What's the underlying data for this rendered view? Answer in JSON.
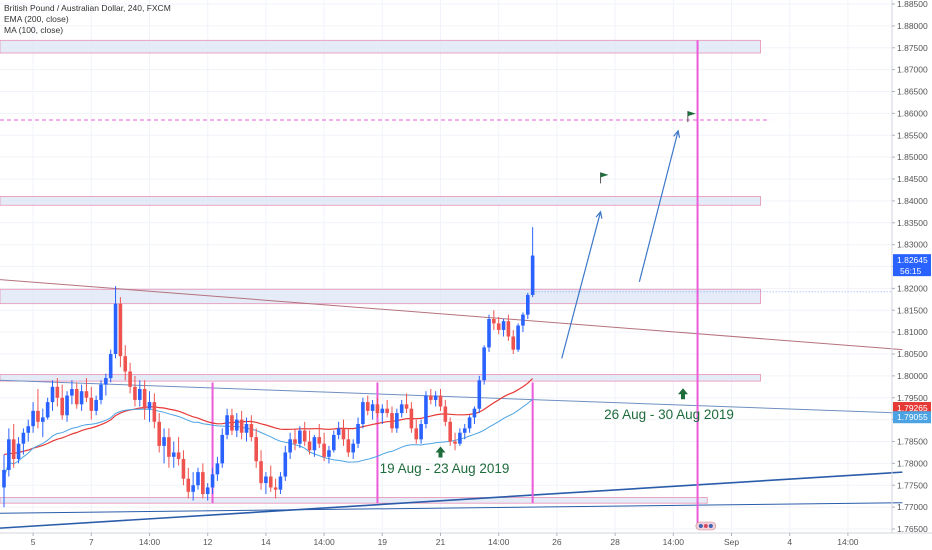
{
  "legend": {
    "title": "British Pound / Australian Dollar, 240, FXCM",
    "ema": "EMA (200, close)",
    "ma": "MA (100, close)"
  },
  "chart_data": {
    "type": "candlestick",
    "symbol": "GBPAUD",
    "y_axis": {
      "min": 1.765,
      "max": 1.885,
      "side": "right",
      "ticks": [
        1.765,
        1.77,
        1.775,
        1.78,
        1.785,
        1.79,
        1.795,
        1.8,
        1.805,
        1.81,
        1.815,
        1.82,
        1.825,
        1.83,
        1.835,
        1.84,
        1.845,
        1.85,
        1.855,
        1.86,
        1.865,
        1.87,
        1.875,
        1.88,
        1.885
      ],
      "tick_labels": [
        "1.76500",
        "1.77000",
        "1.77500",
        "1.78000",
        "1.78500",
        "1.79000",
        "1.79500",
        "1.80000",
        "1.80500",
        "1.81000",
        "1.81500",
        "1.82000",
        "1.82500",
        "1.83000",
        "1.83500",
        "1.84000",
        "1.84500",
        "1.85000",
        "1.85500",
        "1.86000",
        "1.86500",
        "1.87000",
        "1.87500",
        "1.88000",
        "1.88500"
      ]
    },
    "x_axis": {
      "labels": [
        "5",
        "7",
        "14:00",
        "12",
        "14",
        "14:00",
        "19",
        "21",
        "14:00",
        "26",
        "28",
        "14:00",
        "Sep",
        "4",
        "14:00"
      ],
      "label_bar_index": [
        6,
        18,
        30,
        42,
        54,
        66,
        78,
        90,
        102,
        114,
        126,
        138,
        150,
        162,
        174
      ]
    },
    "price_labels": {
      "current": "1.82645",
      "countdown": "56:15",
      "ema_value": "1.79265",
      "ma_value": "1.79055"
    },
    "colors": {
      "up": "#2962ff",
      "down": "#ef5350",
      "ema": "#e53935",
      "ma": "#4ba3e3",
      "zone_fill": "#dce6f5",
      "zone_border": "#e991b4",
      "vline": "#ec5bd9",
      "arrow": "#3c78c8",
      "annotation": "#1e6b3c",
      "resistance": "#b5727e",
      "support": "#2a5caa"
    },
    "annotations": [
      {
        "text": "19 Aug - 23 Aug 2019",
        "bar": 90,
        "price": 1.779,
        "arrow_price": 1.7825
      },
      {
        "text": "26 Aug - 30 Aug 2019",
        "bar": 140,
        "price": 1.7913,
        "arrow_price": 1.7958
      }
    ],
    "zones": [
      {
        "from_bar": 0,
        "to_bar": 156,
        "high": 1.8767,
        "low": 1.8738
      },
      {
        "from_bar": 0,
        "to_bar": 156,
        "high": 1.841,
        "low": 1.839
      },
      {
        "from_bar": 0,
        "to_bar": 156,
        "high": 1.8198,
        "low": 1.8165
      },
      {
        "from_bar": 0,
        "to_bar": 156,
        "high": 1.8003,
        "low": 1.7988
      },
      {
        "from_bar": 0,
        "to_bar": 145,
        "high": 1.7722,
        "low": 1.7709
      }
    ],
    "target_line": 1.8585,
    "vertical_lines": [
      43,
      77,
      109,
      143
    ],
    "trend_lines": [
      {
        "p1": [
          0,
          1.822
        ],
        "p2": [
          184,
          1.806
        ],
        "role": "resistance"
      },
      {
        "p1": [
          0,
          1.799
        ],
        "p2": [
          184,
          1.7915
        ],
        "role": "support-upper"
      },
      {
        "p1": [
          0,
          1.7686
        ],
        "p2": [
          184,
          1.771
        ],
        "role": "support"
      },
      {
        "p1": [
          0,
          1.7652
        ],
        "p2": [
          184,
          1.778
        ],
        "role": "support-lower"
      }
    ],
    "forecast_arrows": [
      {
        "from": [
          115,
          1.804
        ],
        "to": [
          123,
          1.8375
        ]
      },
      {
        "from": [
          131,
          1.8215
        ],
        "to": [
          139,
          1.856
        ]
      }
    ],
    "flags": [
      {
        "bar": 123,
        "price": 1.844
      },
      {
        "bar": 141,
        "price": 1.858
      }
    ],
    "ohlc_sequence": [
      [
        1.7745,
        1.782,
        1.77,
        1.7785
      ],
      [
        1.7785,
        1.788,
        1.777,
        1.7855
      ],
      [
        1.7855,
        1.789,
        1.779,
        1.781
      ],
      [
        1.781,
        1.786,
        1.78,
        1.7845
      ],
      [
        1.7845,
        1.788,
        1.782,
        1.787
      ],
      [
        1.787,
        1.79,
        1.785,
        1.7885
      ],
      [
        1.7885,
        1.794,
        1.787,
        1.792
      ],
      [
        1.792,
        1.797,
        1.788,
        1.7895
      ],
      [
        1.7895,
        1.7925,
        1.786,
        1.7905
      ],
      [
        1.7905,
        1.795,
        1.79,
        1.794
      ],
      [
        1.794,
        1.799,
        1.792,
        1.7975
      ],
      [
        1.7975,
        1.7995,
        1.793,
        1.795
      ],
      [
        1.795,
        1.798,
        1.79,
        1.791
      ],
      [
        1.791,
        1.7965,
        1.7895,
        1.7955
      ],
      [
        1.7955,
        1.799,
        1.7935,
        1.797
      ],
      [
        1.797,
        1.7985,
        1.7925,
        1.7935
      ],
      [
        1.7935,
        1.798,
        1.792,
        1.7965
      ],
      [
        1.7965,
        1.7995,
        1.794,
        1.795
      ],
      [
        1.795,
        1.7975,
        1.79,
        1.792
      ],
      [
        1.792,
        1.7955,
        1.791,
        1.7945
      ],
      [
        1.7945,
        1.799,
        1.7935,
        1.798
      ],
      [
        1.798,
        1.8005,
        1.7955,
        1.7995
      ],
      [
        1.7995,
        1.806,
        1.7985,
        1.805
      ],
      [
        1.805,
        1.8205,
        1.804,
        1.8165
      ],
      [
        1.8165,
        1.818,
        1.802,
        1.8045
      ],
      [
        1.8045,
        1.807,
        1.799,
        1.801
      ],
      [
        1.801,
        1.803,
        1.796,
        1.7975
      ],
      [
        1.7975,
        1.8,
        1.793,
        1.7945
      ],
      [
        1.7945,
        1.799,
        1.793,
        1.797
      ],
      [
        1.797,
        1.799,
        1.79,
        1.7925
      ],
      [
        1.7925,
        1.7965,
        1.7895,
        1.794
      ],
      [
        1.794,
        1.796,
        1.788,
        1.7895
      ],
      [
        1.7895,
        1.7915,
        1.7825,
        1.784
      ],
      [
        1.784,
        1.788,
        1.78,
        1.786
      ],
      [
        1.786,
        1.788,
        1.779,
        1.7815
      ],
      [
        1.7815,
        1.785,
        1.779,
        1.7825
      ],
      [
        1.7825,
        1.786,
        1.7795,
        1.781
      ],
      [
        1.781,
        1.783,
        1.775,
        1.7765
      ],
      [
        1.7765,
        1.779,
        1.772,
        1.7735
      ],
      [
        1.7735,
        1.778,
        1.7715,
        1.775
      ],
      [
        1.775,
        1.779,
        1.774,
        1.778
      ],
      [
        1.778,
        1.78,
        1.772,
        1.773
      ],
      [
        1.773,
        1.7755,
        1.7715,
        1.7745
      ],
      [
        1.7745,
        1.779,
        1.773,
        1.7775
      ],
      [
        1.7775,
        1.7815,
        1.776,
        1.78
      ],
      [
        1.78,
        1.788,
        1.779,
        1.7865
      ],
      [
        1.7865,
        1.7925,
        1.7855,
        1.791
      ],
      [
        1.791,
        1.7925,
        1.7865,
        1.7875
      ],
      [
        1.7875,
        1.7915,
        1.786,
        1.79
      ],
      [
        1.79,
        1.792,
        1.7855,
        1.787
      ],
      [
        1.787,
        1.7905,
        1.785,
        1.789
      ],
      [
        1.789,
        1.791,
        1.785,
        1.786
      ],
      [
        1.786,
        1.788,
        1.779,
        1.7805
      ],
      [
        1.7805,
        1.783,
        1.774,
        1.7755
      ],
      [
        1.7755,
        1.778,
        1.773,
        1.777
      ],
      [
        1.777,
        1.7795,
        1.7735,
        1.7745
      ],
      [
        1.7745,
        1.7765,
        1.772,
        1.774
      ],
      [
        1.774,
        1.778,
        1.773,
        1.777
      ],
      [
        1.777,
        1.784,
        1.776,
        1.7825
      ],
      [
        1.7825,
        1.787,
        1.781,
        1.7855
      ],
      [
        1.7855,
        1.788,
        1.783,
        1.7845
      ],
      [
        1.7845,
        1.7885,
        1.7835,
        1.7875
      ],
      [
        1.7875,
        1.7895,
        1.784,
        1.785
      ],
      [
        1.785,
        1.7875,
        1.782,
        1.783
      ],
      [
        1.783,
        1.7865,
        1.7815,
        1.786
      ],
      [
        1.786,
        1.789,
        1.7835,
        1.7845
      ],
      [
        1.7845,
        1.787,
        1.7805,
        1.7815
      ],
      [
        1.7815,
        1.784,
        1.78,
        1.783
      ],
      [
        1.783,
        1.7875,
        1.7825,
        1.7865
      ],
      [
        1.7865,
        1.7895,
        1.7855,
        1.788
      ],
      [
        1.788,
        1.79,
        1.784,
        1.7855
      ],
      [
        1.7855,
        1.788,
        1.7815,
        1.7825
      ],
      [
        1.7825,
        1.7855,
        1.781,
        1.7845
      ],
      [
        1.7845,
        1.7905,
        1.7835,
        1.789
      ],
      [
        1.789,
        1.795,
        1.788,
        1.794
      ],
      [
        1.794,
        1.7955,
        1.791,
        1.792
      ],
      [
        1.792,
        1.7945,
        1.79,
        1.7935
      ],
      [
        1.7935,
        1.795,
        1.7905,
        1.7915
      ],
      [
        1.7915,
        1.7935,
        1.789,
        1.7925
      ],
      [
        1.7925,
        1.7945,
        1.7905,
        1.7915
      ],
      [
        1.7915,
        1.793,
        1.787,
        1.788
      ],
      [
        1.788,
        1.7925,
        1.787,
        1.7915
      ],
      [
        1.7915,
        1.7945,
        1.7905,
        1.7935
      ],
      [
        1.7935,
        1.796,
        1.7915,
        1.7925
      ],
      [
        1.7925,
        1.794,
        1.787,
        1.788
      ],
      [
        1.788,
        1.79,
        1.7845,
        1.7855
      ],
      [
        1.7855,
        1.79,
        1.7845,
        1.789
      ],
      [
        1.789,
        1.7965,
        1.788,
        1.7955
      ],
      [
        1.7955,
        1.797,
        1.7935,
        1.7945
      ],
      [
        1.7945,
        1.7965,
        1.793,
        1.7955
      ],
      [
        1.7955,
        1.797,
        1.792,
        1.793
      ],
      [
        1.793,
        1.7945,
        1.7885,
        1.7895
      ],
      [
        1.7895,
        1.7905,
        1.784,
        1.785
      ],
      [
        1.785,
        1.787,
        1.783,
        1.7845
      ],
      [
        1.7845,
        1.788,
        1.784,
        1.787
      ],
      [
        1.787,
        1.789,
        1.7855,
        1.788
      ],
      [
        1.788,
        1.791,
        1.787,
        1.7905
      ],
      [
        1.7905,
        1.793,
        1.789,
        1.7925
      ],
      [
        1.7925,
        1.8,
        1.7915,
        1.799
      ],
      [
        1.799,
        1.807,
        1.798,
        1.8065
      ],
      [
        1.8065,
        1.814,
        1.8055,
        1.813
      ],
      [
        1.813,
        1.815,
        1.8105,
        1.812
      ],
      [
        1.812,
        1.8135,
        1.8095,
        1.8105
      ],
      [
        1.8105,
        1.813,
        1.809,
        1.8125
      ],
      [
        1.8125,
        1.814,
        1.808,
        1.809
      ],
      [
        1.809,
        1.8105,
        1.805,
        1.806
      ],
      [
        1.806,
        1.812,
        1.8055,
        1.8115
      ],
      [
        1.8115,
        1.8145,
        1.81,
        1.814
      ],
      [
        1.814,
        1.819,
        1.813,
        1.8185
      ],
      [
        1.8185,
        1.834,
        1.818,
        1.8275
      ]
    ]
  }
}
